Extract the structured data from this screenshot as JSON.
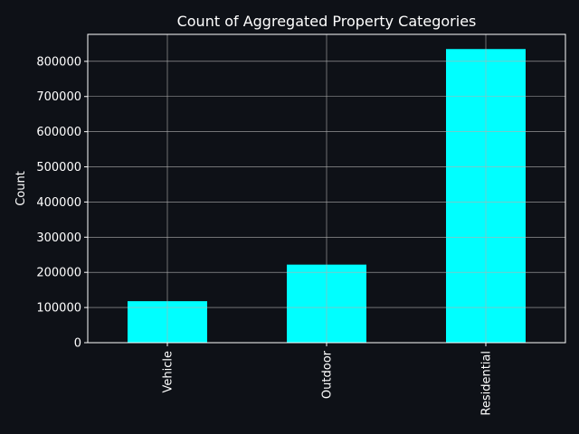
{
  "chart_data": {
    "type": "bar",
    "title": "Count of Aggregated Property Categories",
    "xlabel": "",
    "ylabel": "Count",
    "categories": [
      "Vehicle",
      "Outdoor",
      "Residential"
    ],
    "values": [
      118000,
      222000,
      835000
    ],
    "ylim": [
      0,
      876750
    ],
    "yticks": [
      0,
      100000,
      200000,
      300000,
      400000,
      500000,
      600000,
      700000,
      800000
    ],
    "grid": true,
    "legend": "none",
    "colors": {
      "background": "#0e1117",
      "bar": "#00ffff",
      "grid": "#b0b0b0",
      "axis": "#ffffff",
      "text": "#ffffff"
    }
  }
}
